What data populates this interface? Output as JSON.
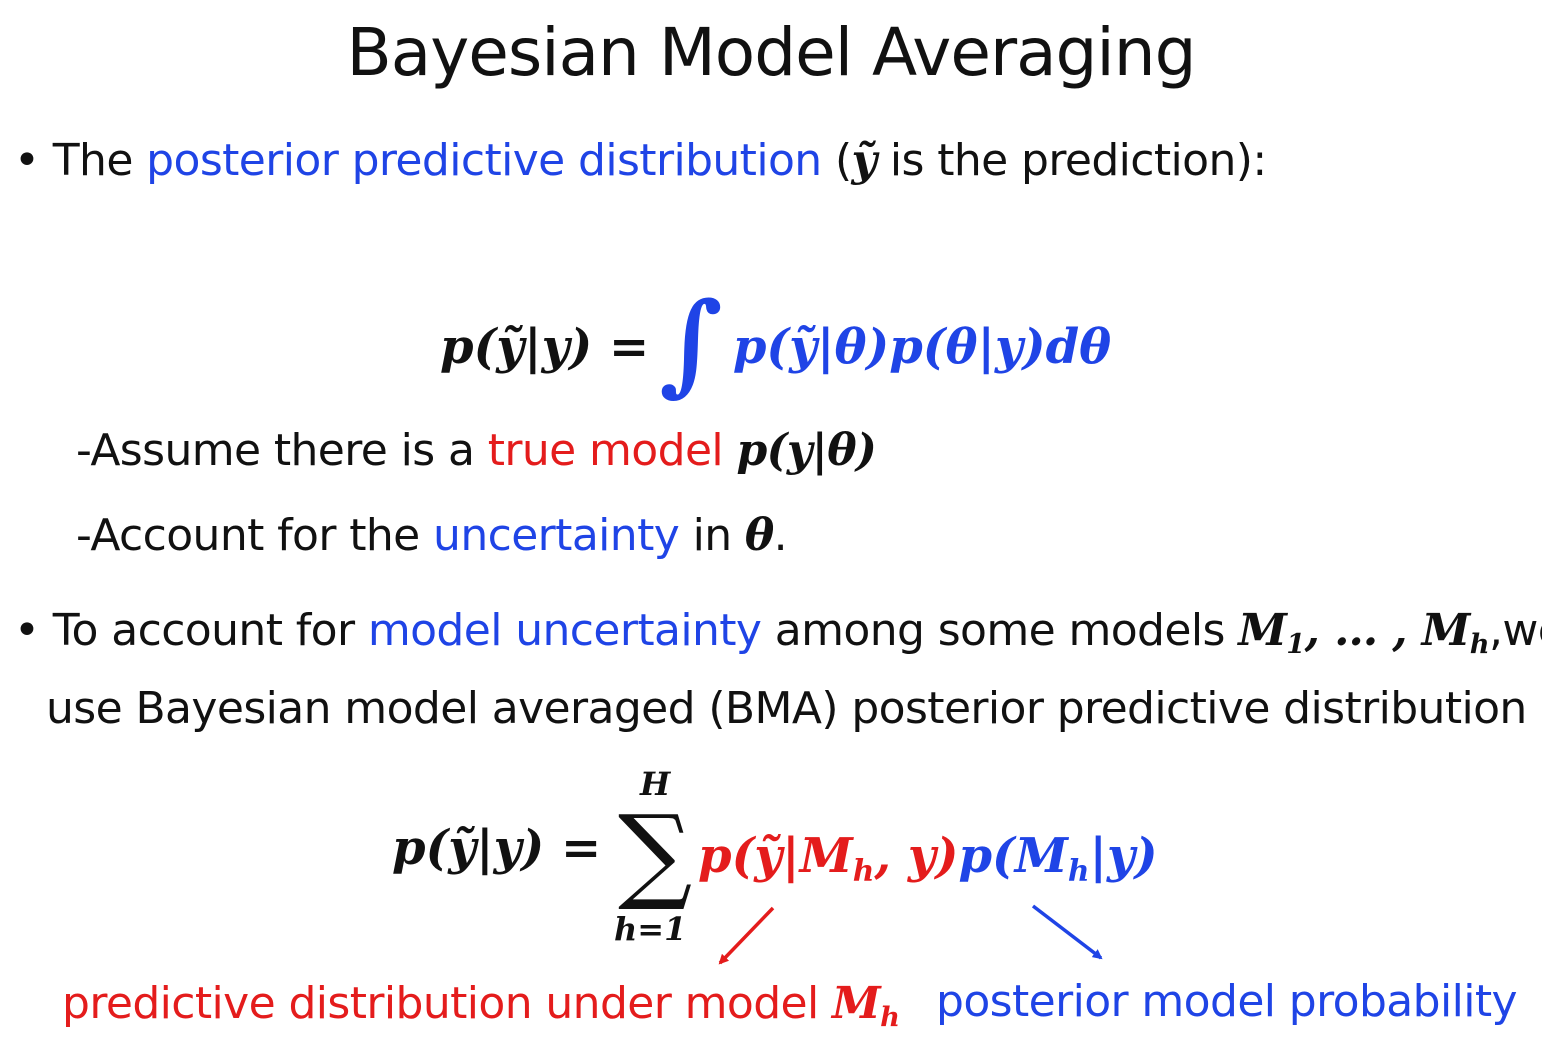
{
  "title": "Bayesian Model Averaging",
  "bullet1": {
    "bullet": "•",
    "text_before": "The ",
    "highlight": "posterior predictive distribution",
    "paren_open": " (",
    "var": "ỹ",
    "text_after": " is the prediction):"
  },
  "equation1": {
    "lhs": "p(ỹ|y) =",
    "integral": "∫",
    "rhs": "p(ỹ|θ)p(θ|y)dθ"
  },
  "sub_items": [
    {
      "dash": "-",
      "before": "Assume there is a ",
      "highlight": "true model",
      "space": " ",
      "math": "p(y|θ)"
    },
    {
      "dash": "-",
      "before": "Account for the ",
      "highlight": "uncertainty",
      "middle": " in ",
      "math": "θ",
      "end": "."
    }
  ],
  "bullet2": {
    "bullet": "•",
    "before": "To account for ",
    "highlight": "model uncertainty",
    "middle": " among some models ",
    "m_first": "M",
    "m_first_sub": "1",
    "dots": ", … , ",
    "m_last": "M",
    "m_last_sub": "h",
    "end": ",we",
    "line2_before": "use ",
    "line2_emph": "Bayesian model averaged (BMA)",
    "line2_after": " posterior predictive distribution"
  },
  "equation2": {
    "lhs": "p(ỹ|y) =",
    "sum": "∑",
    "upper": "H",
    "lower": "h=1",
    "red_part_a": "p(ỹ|M",
    "red_part_sub": "h",
    "red_part_b": ", y)",
    "blue_part_a": "p(M",
    "blue_part_sub": "h",
    "blue_part_b": "|y)"
  },
  "annotations": {
    "red_label": "predictive distribution under model ",
    "red_label_m": "M",
    "red_label_sub": "h",
    "blue_label": "posterior model probability"
  },
  "colors": {
    "blue": "#1f44e6",
    "red": "#e41c1c",
    "text": "#111111"
  }
}
